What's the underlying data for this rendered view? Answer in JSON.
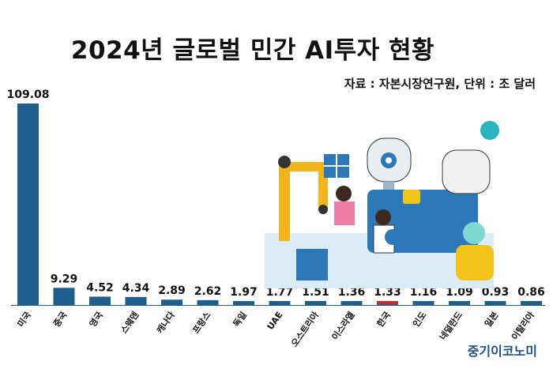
{
  "header": {
    "title": "2024년 글로벌 민간 AI투자 현황",
    "source": "자료 : 자본시장연구원, 단위 : 조 달러"
  },
  "brand": {
    "logo_text": "중기이코노미"
  },
  "colors": {
    "bar": "#1f5f8b",
    "highlight": "#d62728",
    "axis": "#1f5f8b"
  },
  "chart_data": {
    "type": "bar",
    "title": "2024년 글로벌 민간 AI투자 현황",
    "xlabel": "",
    "ylabel": "",
    "ylim": [
      0,
      109.08
    ],
    "grid": false,
    "highlight": "한국",
    "categories": [
      "미국",
      "중국",
      "영국",
      "스웨덴",
      "캐나다",
      "프랑스",
      "독일",
      "UAE",
      "오스트리아",
      "이스라엘",
      "한국",
      "인도",
      "네덜란드",
      "일본",
      "이탈리아"
    ],
    "values": [
      109.08,
      9.29,
      4.52,
      4.34,
      2.89,
      2.62,
      1.97,
      1.77,
      1.51,
      1.36,
      1.33,
      1.16,
      1.09,
      0.93,
      0.86
    ],
    "value_labels": [
      "109.08",
      "9.29",
      "4.52",
      "4.34",
      "2.89",
      "2.62",
      "1.97",
      "1.77",
      "1.51",
      "1.36",
      "1.33",
      "1.16",
      "1.09",
      "0.93",
      "0.86"
    ]
  }
}
